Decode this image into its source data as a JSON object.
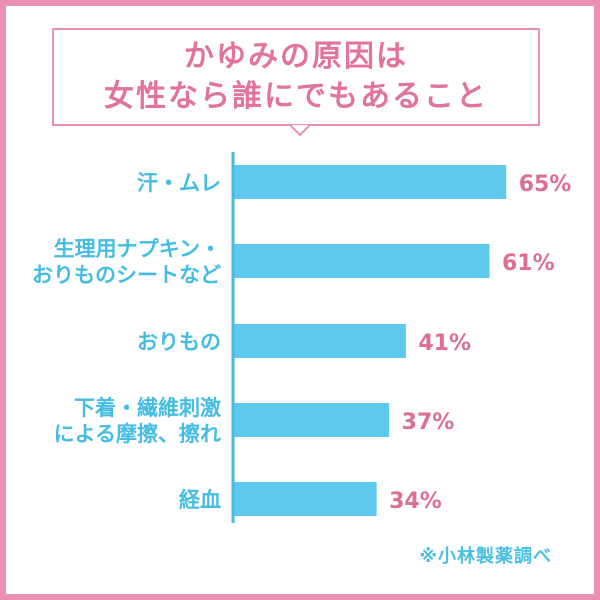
{
  "title": {
    "line1": "かゆみの原因は",
    "line2": "女性なら誰にでもあること"
  },
  "source_note": "※小林製薬調べ",
  "colors": {
    "frame": "#ec8fb4",
    "title_text": "#e2739f",
    "bar": "#5ec9ec",
    "category_text": "#45bde3",
    "value_text": "#dc6f92",
    "axis": "#45bde3"
  },
  "chart_data": {
    "type": "bar",
    "orientation": "horizontal",
    "categories": [
      [
        "汗・ムレ"
      ],
      [
        "生理用ナプキン・",
        "おりものシートなど"
      ],
      [
        "おりもの"
      ],
      [
        "下着・繊維刺激",
        "による摩擦、擦れ"
      ],
      [
        "経血"
      ]
    ],
    "values": [
      65,
      61,
      41,
      37,
      34
    ],
    "value_labels": [
      "65%",
      "61%",
      "41%",
      "37%",
      "34%"
    ],
    "xlim": [
      0,
      100
    ],
    "grid": false,
    "legend": "none"
  }
}
